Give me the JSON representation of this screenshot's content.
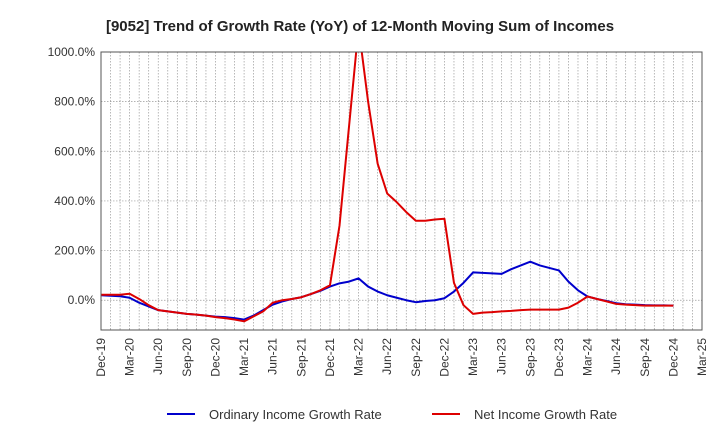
{
  "chart_data": {
    "type": "line",
    "title": "[9052]  Trend of Growth Rate (YoY) of 12-Month Moving Sum of Incomes",
    "xlabel": "",
    "ylabel": "",
    "x_tick_labels": [
      "Dec-19",
      "Mar-20",
      "Jun-20",
      "Sep-20",
      "Dec-20",
      "Mar-21",
      "Jun-21",
      "Sep-21",
      "Dec-21",
      "Mar-22",
      "Jun-22",
      "Sep-22",
      "Dec-22",
      "Mar-23",
      "Jun-23",
      "Sep-23",
      "Dec-23",
      "Mar-24",
      "Jun-24",
      "Sep-24",
      "Dec-24",
      "Mar-25"
    ],
    "y_tick_labels": [
      "0.0%",
      "200.0%",
      "400.0%",
      "600.0%",
      "800.0%",
      "1000.0%"
    ],
    "ylim": [
      -120,
      1000
    ],
    "grid": true,
    "legend_position": "bottom",
    "x": [
      "2019-12",
      "2020-01",
      "2020-02",
      "2020-03",
      "2020-04",
      "2020-05",
      "2020-06",
      "2020-07",
      "2020-08",
      "2020-09",
      "2020-10",
      "2020-11",
      "2020-12",
      "2021-01",
      "2021-02",
      "2021-03",
      "2021-04",
      "2021-05",
      "2021-06",
      "2021-07",
      "2021-08",
      "2021-09",
      "2021-10",
      "2021-11",
      "2021-12",
      "2022-01",
      "2022-02",
      "2022-03",
      "2022-04",
      "2022-05",
      "2022-06",
      "2022-07",
      "2022-08",
      "2022-09",
      "2022-10",
      "2022-11",
      "2022-12",
      "2023-01",
      "2023-02",
      "2023-03",
      "2023-04",
      "2023-05",
      "2023-06",
      "2023-07",
      "2023-08",
      "2023-09",
      "2023-10",
      "2023-11",
      "2023-12",
      "2024-01",
      "2024-02",
      "2024-03",
      "2024-04",
      "2024-05",
      "2024-06",
      "2024-07",
      "2024-08",
      "2024-09",
      "2024-10",
      "2024-11",
      "2024-12"
    ],
    "series": [
      {
        "name": "Ordinary Income Growth Rate",
        "color": "#0000cc",
        "values": [
          20,
          18,
          16,
          10,
          -10,
          -25,
          -40,
          -45,
          -50,
          -55,
          -58,
          -62,
          -66,
          -68,
          -72,
          -78,
          -62,
          -40,
          -18,
          -5,
          5,
          12,
          25,
          38,
          55,
          68,
          75,
          88,
          55,
          35,
          20,
          10,
          0,
          -8,
          -3,
          0,
          8,
          35,
          70,
          112,
          110,
          108,
          106,
          125,
          140,
          155,
          140,
          130,
          120,
          75,
          40,
          15,
          5,
          -3,
          -12,
          -16,
          -18,
          -20,
          -21,
          -21,
          -22
        ],
        "line_style": "solid"
      },
      {
        "name": "Net Income Growth Rate",
        "color": "#dd0000",
        "values": [
          22,
          22,
          22,
          26,
          5,
          -20,
          -40,
          -45,
          -50,
          -55,
          -58,
          -62,
          -68,
          -72,
          -78,
          -85,
          -65,
          -45,
          -10,
          0,
          5,
          12,
          25,
          40,
          60,
          300,
          700,
          1100,
          800,
          550,
          430,
          395,
          355,
          320,
          320,
          325,
          328,
          70,
          -20,
          -55,
          -50,
          -48,
          -45,
          -43,
          -40,
          -38,
          -38,
          -38,
          -38,
          -30,
          -10,
          15,
          5,
          -5,
          -15,
          -18,
          -20,
          -22,
          -22,
          -22,
          -22
        ],
        "line_style": "solid"
      }
    ]
  }
}
